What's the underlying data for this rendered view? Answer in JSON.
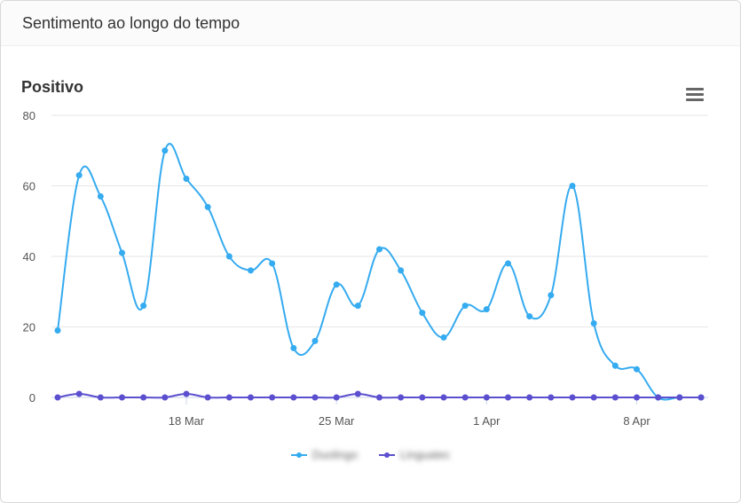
{
  "card": {
    "title": "Sentimento ao longo do tempo"
  },
  "chart_data": {
    "type": "line",
    "title": "Positivo",
    "xlabel": "",
    "ylabel": "",
    "ylim": [
      0,
      80
    ],
    "yticks": [
      0,
      20,
      40,
      60,
      80
    ],
    "x_start": "2024-03-12",
    "xtick_labels": [
      "18 Mar",
      "25 Mar",
      "1 Apr",
      "8 Apr"
    ],
    "xtick_index": [
      6,
      13,
      20,
      27
    ],
    "grid": true,
    "legend": "bottom-center",
    "series": [
      {
        "name": "Duolingo",
        "color": "#35abf0",
        "values": [
          19,
          63,
          57,
          41,
          26,
          70,
          62,
          54,
          40,
          36,
          38,
          14,
          16,
          32,
          26,
          42,
          36,
          24,
          17,
          26,
          25,
          38,
          23,
          29,
          60,
          21,
          9,
          8,
          0,
          0,
          0
        ]
      },
      {
        "name": "Linguatec",
        "color": "#5b4fcf",
        "values": [
          0,
          1,
          0,
          0,
          0,
          0,
          1,
          0,
          0,
          0,
          0,
          0,
          0,
          0,
          1,
          0,
          0,
          0,
          0,
          0,
          0,
          0,
          0,
          0,
          0,
          0,
          0,
          0,
          0,
          0,
          0
        ]
      }
    ]
  }
}
